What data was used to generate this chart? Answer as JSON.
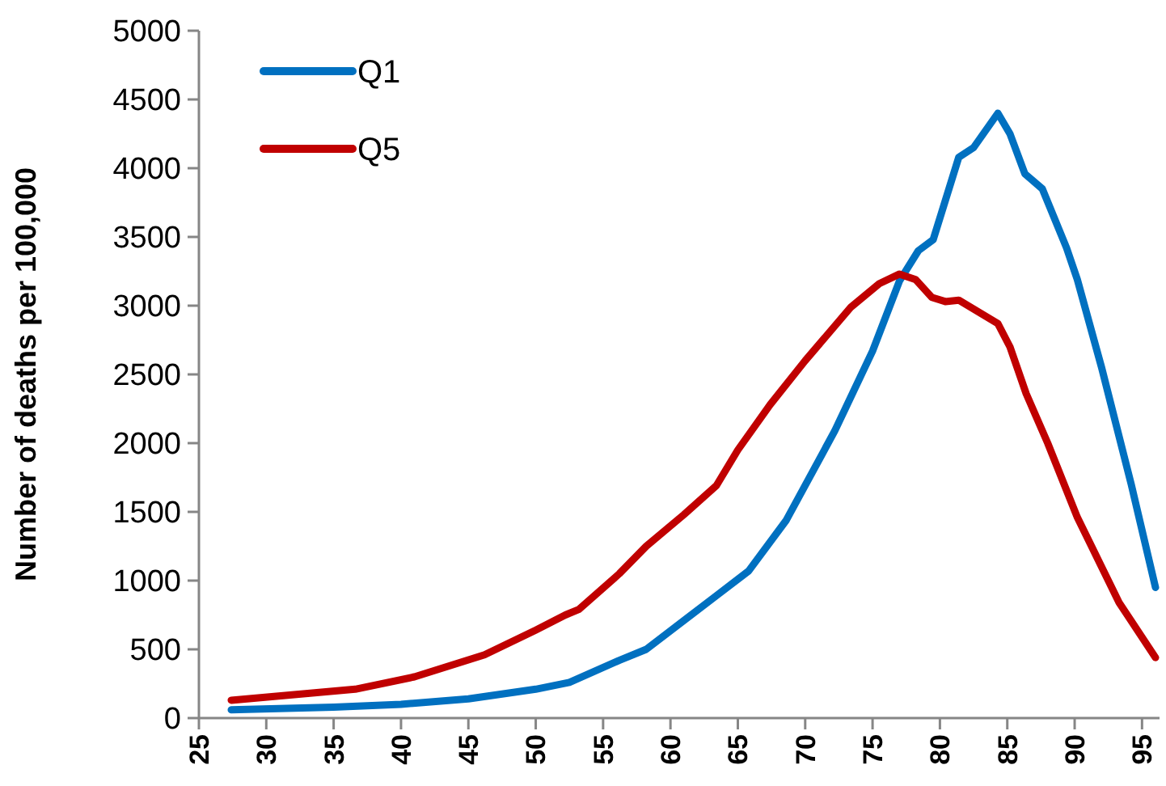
{
  "chart_data": {
    "type": "line",
    "ylabel": "Number of deaths per 100,000",
    "xlim": [
      25,
      96.3
    ],
    "xticks": [
      25,
      30,
      35,
      40,
      45,
      50,
      55,
      60,
      65,
      70,
      75,
      80,
      85,
      90,
      95
    ],
    "ylim": [
      0,
      5000
    ],
    "yticks": [
      0,
      500,
      1000,
      1500,
      2000,
      2500,
      3000,
      3500,
      4000,
      4500,
      5000
    ],
    "grid": false,
    "legend": "top left",
    "line_style": "solid",
    "marker": "none",
    "series": [
      {
        "name": "Q1",
        "color": "#0070c0",
        "x": [
          27.4,
          35,
          40,
          45,
          50,
          52.5,
          56.2,
          58.2,
          63.4,
          65.8,
          68.6,
          72.2,
          75,
          77,
          78.4,
          79.5,
          81.4,
          82.5,
          84.3,
          85.2,
          86.3,
          87.6,
          89.4,
          90.2,
          92,
          94.2,
          96
        ],
        "values": [
          60,
          80,
          100,
          140,
          210,
          260,
          420,
          500,
          890,
          1070,
          1440,
          2090,
          2670,
          3180,
          3400,
          3480,
          4080,
          4150,
          4400,
          4250,
          3960,
          3850,
          3420,
          3190,
          2550,
          1700,
          950
        ]
      },
      {
        "name": "Q5",
        "color": "#c00000",
        "x": [
          27.4,
          36.6,
          41,
          46.2,
          50,
          52.2,
          53.2,
          56.2,
          58.2,
          61,
          63.4,
          65,
          67.4,
          70,
          73.4,
          75.5,
          77,
          78.2,
          79.4,
          80.4,
          81.4,
          82.6,
          84.3,
          85.2,
          86.4,
          88,
          90.2,
          93.3,
          96
        ],
        "values": [
          130,
          210,
          300,
          460,
          640,
          750,
          790,
          1050,
          1250,
          1480,
          1690,
          1950,
          2280,
          2600,
          2990,
          3160,
          3230,
          3190,
          3060,
          3030,
          3040,
          2970,
          2870,
          2700,
          2360,
          2000,
          1460,
          840,
          440
        ]
      }
    ]
  }
}
